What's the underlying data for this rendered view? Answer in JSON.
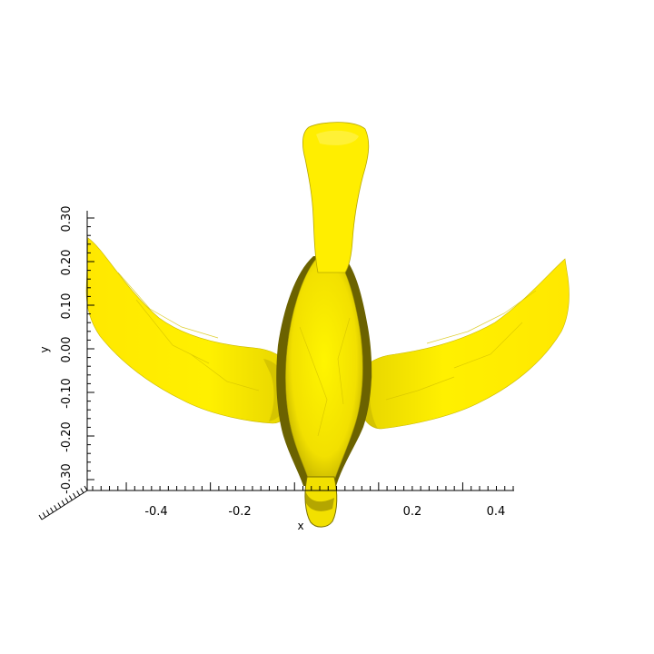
{
  "scene": {
    "object": "bird-mesh",
    "surface_color": "#ffee00",
    "shadow_color": "#6b6200",
    "background": "#ffffff"
  },
  "axes": {
    "x_title": "x",
    "y_title": "y",
    "x_ticks": [
      "-0.4",
      "-0.2",
      "0.2",
      "0.4"
    ],
    "y_ticks": [
      "0.30",
      "0.20",
      "0.10",
      "0.00",
      "-0.10",
      "-0.20",
      "-0.30"
    ]
  }
}
